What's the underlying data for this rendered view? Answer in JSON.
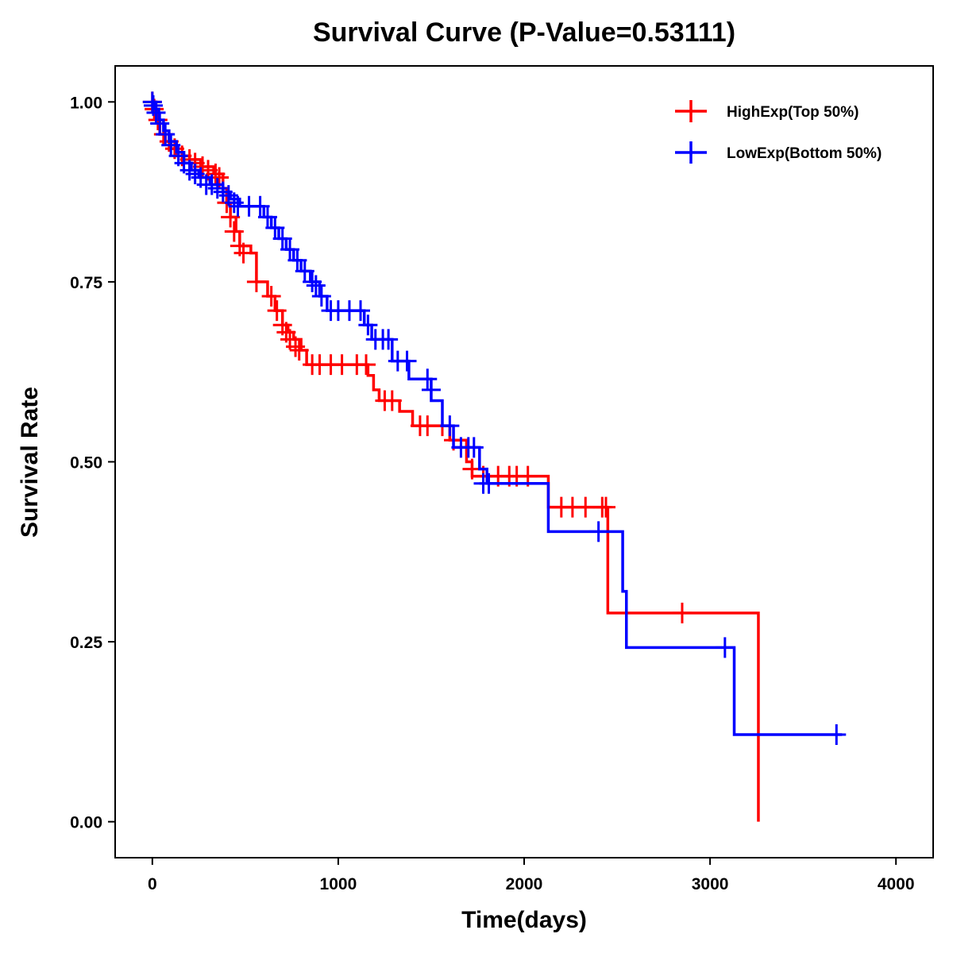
{
  "chart_data": {
    "type": "line",
    "title": "Survival Curve (P-Value=0.53111)",
    "xlabel": "Time(days)",
    "ylabel": "Survival Rate",
    "xlim": [
      -200,
      4200
    ],
    "ylim": [
      -0.05,
      1.05
    ],
    "xticks": [
      0,
      1000,
      2000,
      3000,
      4000
    ],
    "xtick_labels": [
      "0",
      "1000",
      "2000",
      "3000",
      "4000"
    ],
    "yticks": [
      0,
      0.25,
      0.5,
      0.75,
      1.0
    ],
    "ytick_labels": [
      "0.00",
      "0.25",
      "0.50",
      "0.75",
      "1.00"
    ],
    "grid": false,
    "legend_position": "top-right",
    "series": [
      {
        "name": "HighExp(Top 50%)",
        "color": "#ff0000",
        "steps": [
          [
            0,
            1.0
          ],
          [
            20,
            0.975
          ],
          [
            40,
            0.955
          ],
          [
            70,
            0.945
          ],
          [
            100,
            0.935
          ],
          [
            130,
            0.925
          ],
          [
            200,
            0.92
          ],
          [
            260,
            0.91
          ],
          [
            330,
            0.9
          ],
          [
            380,
            0.88
          ],
          [
            400,
            0.86
          ],
          [
            420,
            0.84
          ],
          [
            450,
            0.82
          ],
          [
            470,
            0.8
          ],
          [
            530,
            0.79
          ],
          [
            560,
            0.75
          ],
          [
            620,
            0.73
          ],
          [
            660,
            0.71
          ],
          [
            700,
            0.69
          ],
          [
            730,
            0.68
          ],
          [
            760,
            0.67
          ],
          [
            800,
            0.655
          ],
          [
            830,
            0.635
          ],
          [
            1160,
            0.62
          ],
          [
            1190,
            0.6
          ],
          [
            1220,
            0.585
          ],
          [
            1330,
            0.57
          ],
          [
            1400,
            0.55
          ],
          [
            1600,
            0.53
          ],
          [
            1690,
            0.5
          ],
          [
            1720,
            0.48
          ],
          [
            2130,
            0.437
          ],
          [
            2450,
            0.29
          ],
          [
            3260,
            0.0
          ]
        ],
        "end_x": 3260,
        "censored": [
          [
            0,
            1.0
          ],
          [
            10,
            0.99
          ],
          [
            30,
            0.975
          ],
          [
            60,
            0.955
          ],
          [
            90,
            0.945
          ],
          [
            120,
            0.935
          ],
          [
            160,
            0.925
          ],
          [
            200,
            0.92
          ],
          [
            230,
            0.915
          ],
          [
            270,
            0.91
          ],
          [
            300,
            0.905
          ],
          [
            340,
            0.9
          ],
          [
            360,
            0.895
          ],
          [
            400,
            0.86
          ],
          [
            420,
            0.84
          ],
          [
            440,
            0.82
          ],
          [
            470,
            0.8
          ],
          [
            490,
            0.79
          ],
          [
            560,
            0.75
          ],
          [
            640,
            0.73
          ],
          [
            670,
            0.71
          ],
          [
            700,
            0.69
          ],
          [
            720,
            0.68
          ],
          [
            740,
            0.67
          ],
          [
            770,
            0.66
          ],
          [
            790,
            0.655
          ],
          [
            860,
            0.635
          ],
          [
            900,
            0.635
          ],
          [
            960,
            0.635
          ],
          [
            1020,
            0.635
          ],
          [
            1100,
            0.635
          ],
          [
            1150,
            0.635
          ],
          [
            1250,
            0.585
          ],
          [
            1290,
            0.585
          ],
          [
            1440,
            0.55
          ],
          [
            1480,
            0.55
          ],
          [
            1560,
            0.55
          ],
          [
            1620,
            0.53
          ],
          [
            1720,
            0.49
          ],
          [
            1780,
            0.48
          ],
          [
            1860,
            0.48
          ],
          [
            1920,
            0.48
          ],
          [
            1960,
            0.48
          ],
          [
            2020,
            0.48
          ],
          [
            2200,
            0.437
          ],
          [
            2260,
            0.437
          ],
          [
            2330,
            0.437
          ],
          [
            2420,
            0.437
          ],
          [
            2440,
            0.437
          ],
          [
            2850,
            0.29
          ]
        ]
      },
      {
        "name": "LowExp(Bottom 50%)",
        "color": "#0000ff",
        "steps": [
          [
            0,
            1.0
          ],
          [
            15,
            0.99
          ],
          [
            35,
            0.975
          ],
          [
            60,
            0.96
          ],
          [
            90,
            0.945
          ],
          [
            130,
            0.93
          ],
          [
            170,
            0.915
          ],
          [
            210,
            0.905
          ],
          [
            250,
            0.895
          ],
          [
            310,
            0.885
          ],
          [
            380,
            0.875
          ],
          [
            420,
            0.865
          ],
          [
            470,
            0.855
          ],
          [
            600,
            0.84
          ],
          [
            640,
            0.825
          ],
          [
            680,
            0.81
          ],
          [
            720,
            0.795
          ],
          [
            760,
            0.78
          ],
          [
            800,
            0.765
          ],
          [
            850,
            0.75
          ],
          [
            900,
            0.73
          ],
          [
            940,
            0.71
          ],
          [
            1140,
            0.69
          ],
          [
            1180,
            0.67
          ],
          [
            1290,
            0.64
          ],
          [
            1380,
            0.615
          ],
          [
            1500,
            0.585
          ],
          [
            1560,
            0.55
          ],
          [
            1620,
            0.52
          ],
          [
            1760,
            0.49
          ],
          [
            1800,
            0.47
          ],
          [
            2130,
            0.403
          ],
          [
            2530,
            0.32
          ],
          [
            2550,
            0.242
          ],
          [
            3130,
            0.121
          ]
        ],
        "end_x": 3710,
        "censored": [
          [
            0,
            1.0
          ],
          [
            5,
            0.995
          ],
          [
            20,
            0.985
          ],
          [
            40,
            0.97
          ],
          [
            70,
            0.955
          ],
          [
            100,
            0.94
          ],
          [
            140,
            0.925
          ],
          [
            170,
            0.915
          ],
          [
            200,
            0.905
          ],
          [
            230,
            0.9
          ],
          [
            260,
            0.895
          ],
          [
            290,
            0.885
          ],
          [
            320,
            0.885
          ],
          [
            350,
            0.88
          ],
          [
            380,
            0.875
          ],
          [
            410,
            0.87
          ],
          [
            440,
            0.86
          ],
          [
            460,
            0.855
          ],
          [
            520,
            0.855
          ],
          [
            580,
            0.855
          ],
          [
            620,
            0.84
          ],
          [
            660,
            0.825
          ],
          [
            700,
            0.81
          ],
          [
            740,
            0.795
          ],
          [
            780,
            0.78
          ],
          [
            820,
            0.765
          ],
          [
            860,
            0.75
          ],
          [
            880,
            0.745
          ],
          [
            910,
            0.73
          ],
          [
            960,
            0.71
          ],
          [
            1000,
            0.71
          ],
          [
            1060,
            0.71
          ],
          [
            1120,
            0.71
          ],
          [
            1160,
            0.69
          ],
          [
            1200,
            0.67
          ],
          [
            1240,
            0.67
          ],
          [
            1270,
            0.67
          ],
          [
            1320,
            0.64
          ],
          [
            1370,
            0.64
          ],
          [
            1480,
            0.615
          ],
          [
            1500,
            0.6
          ],
          [
            1600,
            0.55
          ],
          [
            1660,
            0.52
          ],
          [
            1700,
            0.52
          ],
          [
            1730,
            0.52
          ],
          [
            1780,
            0.47
          ],
          [
            1810,
            0.47
          ],
          [
            2400,
            0.403
          ],
          [
            3080,
            0.242
          ],
          [
            3680,
            0.121
          ]
        ]
      }
    ]
  }
}
